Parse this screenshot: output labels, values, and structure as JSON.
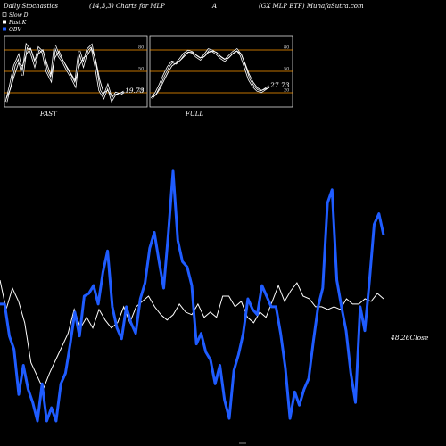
{
  "header": {
    "left": "Daily Stochastics",
    "params": "(14,3,3) Charts for MLP",
    "mid": "A",
    "right": "(GX MLP ETF) MunafaSutra.com"
  },
  "legend": {
    "items": [
      {
        "label": "Slow D",
        "color": "#000000"
      },
      {
        "label": "Fast K",
        "color": "#ffffff"
      },
      {
        "label": "OBV",
        "color": "#1f5cff"
      }
    ]
  },
  "colors": {
    "obv": "#1f5cff",
    "price": "#ffffff",
    "band": "#ff9900",
    "background": "#000000"
  },
  "chart_data": [
    {
      "type": "line",
      "name": "FAST",
      "title": "FAST",
      "ylim": [
        0,
        100
      ],
      "bands": [
        20,
        50,
        80
      ],
      "band_labels": [
        "20",
        "50",
        "80"
      ],
      "last_value_label": "19.73",
      "series": [
        {
          "name": "Fast K",
          "values": [
            5,
            30,
            58,
            72,
            44,
            88,
            80,
            60,
            84,
            78,
            50,
            38,
            88,
            72,
            64,
            52,
            42,
            30,
            80,
            60,
            82,
            88,
            58,
            22,
            12,
            28,
            8,
            18,
            16,
            20
          ]
        },
        {
          "name": "Slow D",
          "values": [
            10,
            24,
            44,
            62,
            58,
            76,
            84,
            66,
            76,
            82,
            62,
            44,
            70,
            80,
            66,
            56,
            46,
            36,
            58,
            70,
            74,
            84,
            68,
            38,
            18,
            22,
            14,
            16,
            18,
            19
          ]
        }
      ]
    },
    {
      "type": "line",
      "name": "FULL",
      "title": "FULL",
      "ylim": [
        0,
        100
      ],
      "bands": [
        20,
        50,
        80
      ],
      "band_labels": [
        "20",
        "50",
        "80"
      ],
      "last_value_label": "27.73",
      "series": [
        {
          "name": "Full K",
          "values": [
            10,
            18,
            30,
            44,
            56,
            64,
            62,
            68,
            76,
            80,
            78,
            72,
            68,
            74,
            82,
            80,
            76,
            70,
            66,
            72,
            78,
            82,
            74,
            56,
            38,
            28,
            22,
            20,
            24,
            28
          ]
        },
        {
          "name": "Full D",
          "values": [
            12,
            15,
            24,
            36,
            48,
            58,
            62,
            66,
            72,
            78,
            78,
            74,
            70,
            72,
            78,
            80,
            78,
            72,
            68,
            70,
            76,
            80,
            76,
            62,
            46,
            34,
            26,
            22,
            24,
            26
          ]
        }
      ]
    },
    {
      "type": "line",
      "name": "main",
      "close_label": "48.26Close",
      "series": [
        {
          "name": "OBV",
          "values": [
            0.46,
            0.46,
            0.34,
            0.29,
            0.12,
            0.23,
            0.14,
            0.09,
            0.02,
            0.16,
            0.02,
            0.07,
            0.02,
            0.16,
            0.2,
            0.31,
            0.43,
            0.34,
            0.49,
            0.5,
            0.53,
            0.46,
            0.58,
            0.66,
            0.45,
            0.37,
            0.33,
            0.45,
            0.39,
            0.35,
            0.48,
            0.54,
            0.67,
            0.73,
            0.62,
            0.52,
            0.73,
            0.96,
            0.7,
            0.62,
            0.6,
            0.53,
            0.31,
            0.35,
            0.28,
            0.25,
            0.16,
            0.23,
            0.1,
            0.03,
            0.21,
            0.27,
            0.35,
            0.48,
            0.44,
            0.42,
            0.53,
            0.49,
            0.45,
            0.45,
            0.35,
            0.22,
            0.03,
            0.13,
            0.08,
            0.14,
            0.18,
            0.32,
            0.45,
            0.52,
            0.84,
            0.89,
            0.55,
            0.45,
            0.36,
            0.2,
            0.09,
            0.45,
            0.36,
            0.55,
            0.76,
            0.8,
            0.72
          ]
        },
        {
          "name": "Price",
          "values": [
            0.55,
            0.44,
            0.52,
            0.47,
            0.39,
            0.24,
            0.19,
            0.14,
            0.2,
            0.25,
            0.3,
            0.35,
            0.44,
            0.37,
            0.41,
            0.37,
            0.44,
            0.4,
            0.37,
            0.39,
            0.45,
            0.39,
            0.45,
            0.47,
            0.49,
            0.45,
            0.42,
            0.4,
            0.42,
            0.46,
            0.43,
            0.42,
            0.46,
            0.41,
            0.43,
            0.41,
            0.49,
            0.49,
            0.45,
            0.47,
            0.41,
            0.39,
            0.43,
            0.41,
            0.47,
            0.53,
            0.47,
            0.51,
            0.54,
            0.49,
            0.48,
            0.45,
            0.45,
            0.44,
            0.45,
            0.44,
            0.48,
            0.46,
            0.46,
            0.48,
            0.47,
            0.5,
            0.48
          ]
        }
      ]
    }
  ]
}
